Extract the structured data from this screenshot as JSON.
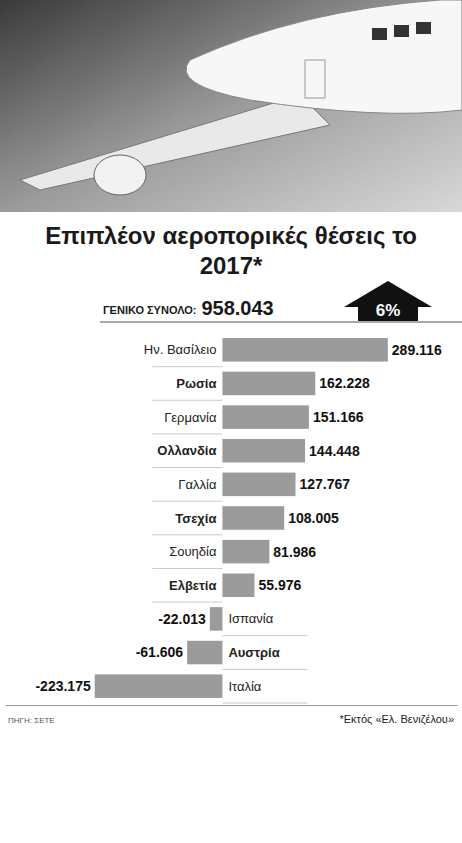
{
  "chart_data": {
    "type": "bar",
    "orientation": "horizontal",
    "title": "Επιπλέον αεροπορικές θέσεις το 2017*",
    "total_label": "ΓΕΝΙΚΟ ΣΥΝΟΛΟ:",
    "total_value": "958.043",
    "change_label": "6%",
    "categories": [
      "Ην. Βασίλειο",
      "Ρωσία",
      "Γερμανία",
      "Ολλανδία",
      "Γαλλία",
      "Τσεχία",
      "Σουηδία",
      "Ελβετία",
      "Ισπανία",
      "Αυστρία",
      "Ιταλία"
    ],
    "values": [
      289116,
      162228,
      151166,
      144448,
      127767,
      108005,
      81986,
      55976,
      -22013,
      -61606,
      -223175
    ],
    "value_labels": [
      "289.116",
      "162.228",
      "151.166",
      "144.448",
      "127.767",
      "108.005",
      "81.986",
      "55.976",
      "-22.013",
      "-61.606",
      "-223.175"
    ],
    "data_labels": true,
    "tick_labels": false,
    "color": "#9b9b9b",
    "xlim": [
      -380000,
      410000
    ],
    "note": "*Εκτός «Ελ. Βενιζέλου»",
    "source": "ΠΗΓΗ: ΣΕΤΕ"
  }
}
